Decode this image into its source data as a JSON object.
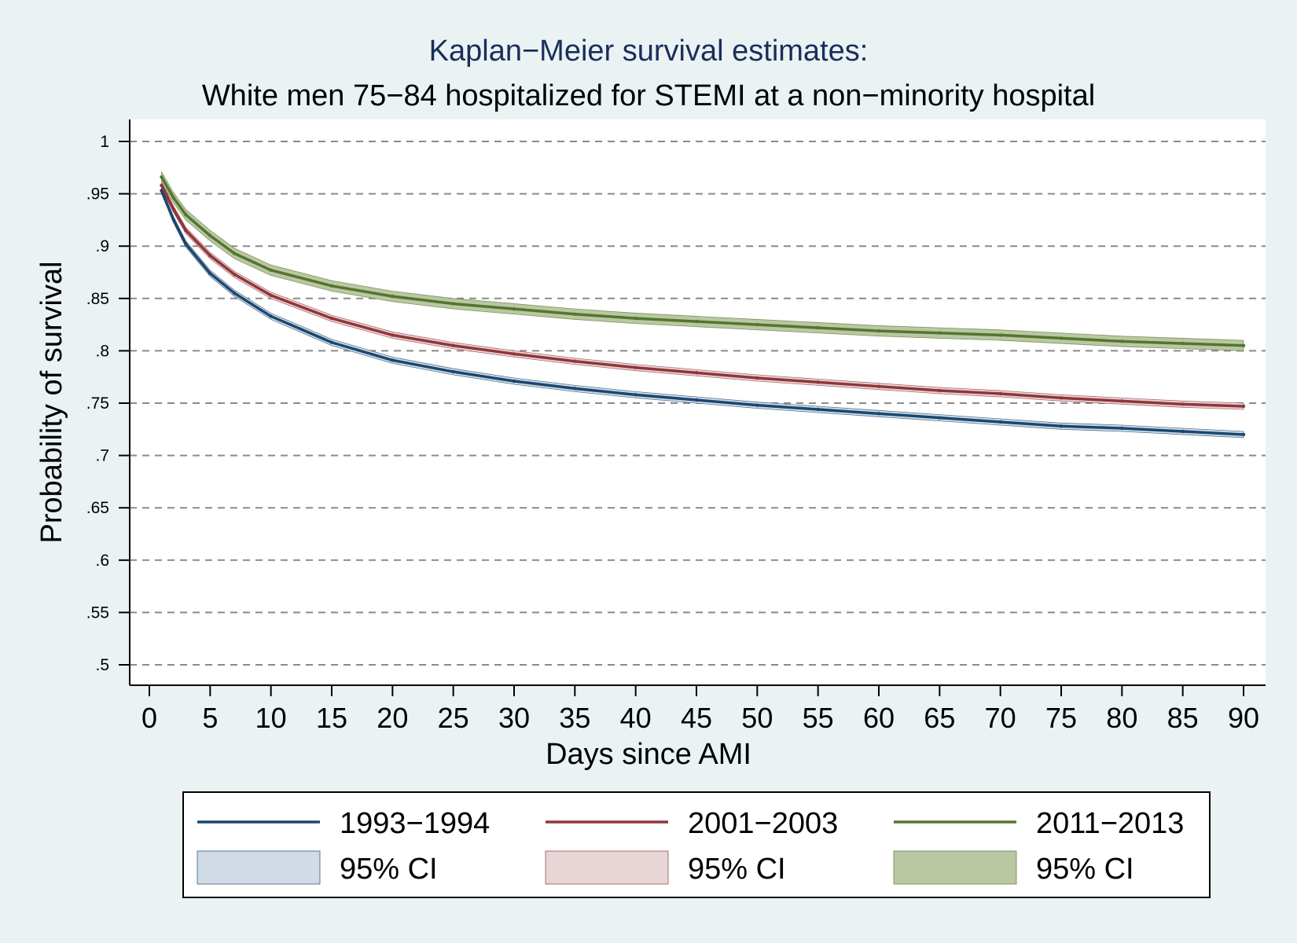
{
  "chart_data": {
    "type": "line",
    "title": "Kaplan−Meier survival estimates:",
    "subtitle": "White men 75−84 hospitalized for STEMI at a non−minority hospital",
    "xlabel": "Days since AMI",
    "ylabel": "Probability of survival",
    "xlim": [
      0,
      90
    ],
    "ylim": [
      0.5,
      1
    ],
    "x_ticks": [
      "0",
      "5",
      "10",
      "15",
      "20",
      "25",
      "30",
      "35",
      "40",
      "45",
      "50",
      "55",
      "60",
      "65",
      "70",
      "75",
      "80",
      "85",
      "90"
    ],
    "y_ticks": [
      "1",
      ".95",
      ".9",
      ".85",
      ".8",
      ".75",
      ".7",
      ".65",
      ".6",
      ".55",
      ".5"
    ],
    "grid": true,
    "legend_position": "bottom",
    "x": [
      1,
      2,
      3,
      5,
      7,
      10,
      15,
      20,
      25,
      30,
      35,
      40,
      45,
      50,
      55,
      60,
      65,
      70,
      75,
      80,
      85,
      90
    ],
    "series": [
      {
        "name": "1993−1994",
        "ci_label": "95% CI",
        "color": "#1a476f",
        "ci_fill": "#d0dbe6",
        "values": [
          0.953,
          0.925,
          0.902,
          0.874,
          0.855,
          0.833,
          0.808,
          0.791,
          0.78,
          0.771,
          0.764,
          0.758,
          0.753,
          0.748,
          0.744,
          0.74,
          0.736,
          0.732,
          0.728,
          0.726,
          0.723,
          0.72
        ],
        "ci_halfwidth": 0.003
      },
      {
        "name": "2001−2003",
        "ci_label": "95% CI",
        "color": "#90353b",
        "ci_fill": "#e8d5d6",
        "values": [
          0.958,
          0.935,
          0.915,
          0.891,
          0.873,
          0.853,
          0.831,
          0.815,
          0.805,
          0.797,
          0.79,
          0.784,
          0.779,
          0.774,
          0.77,
          0.766,
          0.762,
          0.759,
          0.755,
          0.752,
          0.749,
          0.747
        ],
        "ci_halfwidth": 0.003
      },
      {
        "name": "2011−2013",
        "ci_label": "95% CI",
        "color": "#55752f",
        "ci_fill": "#b9c8a3",
        "values": [
          0.966,
          0.946,
          0.93,
          0.91,
          0.893,
          0.877,
          0.862,
          0.852,
          0.845,
          0.84,
          0.835,
          0.831,
          0.828,
          0.825,
          0.822,
          0.819,
          0.817,
          0.815,
          0.812,
          0.809,
          0.807,
          0.805
        ],
        "ci_halfwidth": 0.005
      }
    ]
  }
}
